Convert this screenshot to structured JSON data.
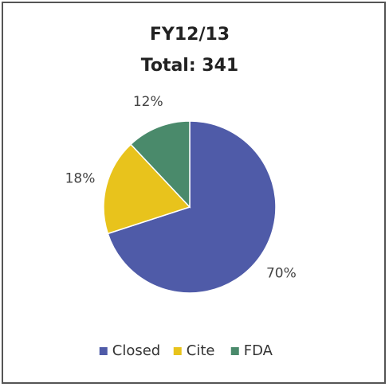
{
  "chart_data": {
    "type": "pie",
    "title": "FY12/13",
    "subtitle": "Total: 341",
    "categories": [
      "Closed",
      "Cite",
      "FDA"
    ],
    "values": [
      70,
      18,
      12
    ],
    "value_labels": [
      "70%",
      "18%",
      "12%"
    ],
    "colors": [
      "#4f5ba8",
      "#e8c31c",
      "#4a8a6b"
    ],
    "legend": "bottom"
  }
}
